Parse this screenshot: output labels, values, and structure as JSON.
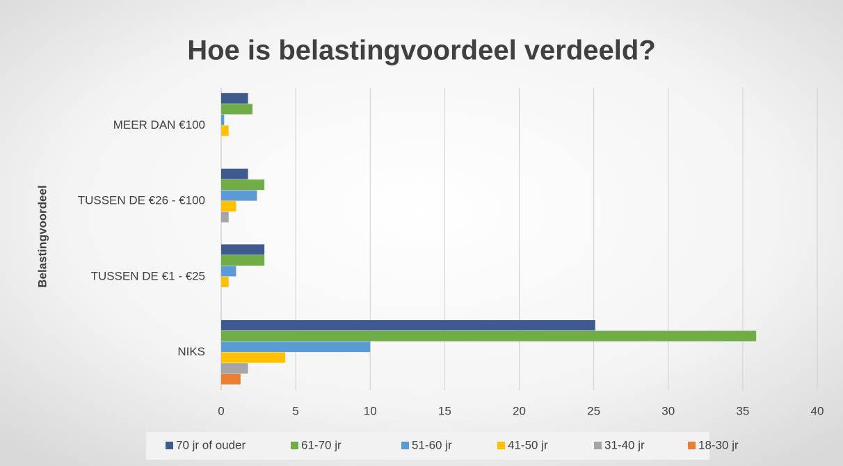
{
  "chart_data": {
    "type": "bar",
    "orientation": "horizontal",
    "title": "Hoe is belastingvoordeel verdeeld?",
    "y_label": "Belastingvoordeel",
    "categories": [
      "MEER DAN €100",
      "TUSSEN DE €26 - €100",
      "TUSSEN DE €1 - €25",
      "NIKS"
    ],
    "series": [
      {
        "name": "70 jr of ouder",
        "color": "#3f5a8e",
        "values": [
          1.8,
          1.8,
          2.9,
          25.1
        ]
      },
      {
        "name": "61-70 jr",
        "color": "#70ad47",
        "values": [
          2.1,
          2.9,
          2.9,
          35.9
        ]
      },
      {
        "name": "51-60 jr",
        "color": "#5b9bd5",
        "values": [
          0.2,
          2.4,
          1.0,
          10
        ]
      },
      {
        "name": "41-50 jr",
        "color": "#ffc000",
        "values": [
          0.5,
          1.0,
          0.5,
          4.3
        ]
      },
      {
        "name": "31-40 jr",
        "color": "#a5a5a5",
        "values": [
          0,
          0.5,
          0,
          1.8
        ]
      },
      {
        "name": "18-30 jr",
        "color": "#ed7d31",
        "values": [
          0,
          0,
          0,
          1.3
        ]
      }
    ],
    "xlim": [
      0,
      40
    ],
    "xticks": [
      0,
      5,
      10,
      15,
      20,
      25,
      30,
      35,
      40
    ],
    "grid": true,
    "legend": "bottom"
  }
}
